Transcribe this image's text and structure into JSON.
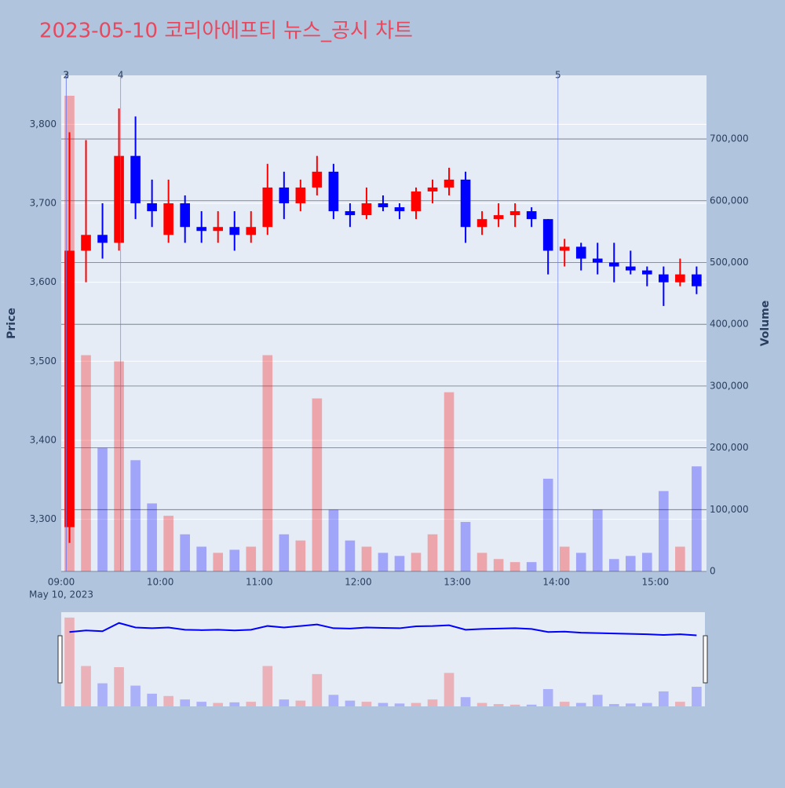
{
  "chart_data": {
    "type": "candlestick",
    "title": "2023-05-10 코리아에프티 뉴스_공시 차트",
    "x": [
      "09:00",
      "09:10",
      "09:20",
      "09:30",
      "09:40",
      "09:50",
      "10:00",
      "10:10",
      "10:20",
      "10:30",
      "10:40",
      "10:50",
      "11:00",
      "11:10",
      "11:20",
      "11:30",
      "11:40",
      "11:50",
      "12:00",
      "12:10",
      "12:20",
      "12:30",
      "12:40",
      "12:50",
      "13:00",
      "13:10",
      "13:20",
      "13:30",
      "13:40",
      "13:50",
      "14:00",
      "14:10",
      "14:20",
      "14:30",
      "14:40",
      "14:50",
      "15:00",
      "15:10",
      "15:20"
    ],
    "open": [
      3290,
      3640,
      3660,
      3650,
      3760,
      3700,
      3660,
      3700,
      3670,
      3665,
      3670,
      3660,
      3670,
      3720,
      3700,
      3720,
      3740,
      3690,
      3685,
      3700,
      3695,
      3690,
      3715,
      3720,
      3730,
      3670,
      3680,
      3685,
      3690,
      3680,
      3640,
      3645,
      3630,
      3625,
      3620,
      3615,
      3610,
      3600,
      3610
    ],
    "high": [
      3790,
      3780,
      3700,
      3820,
      3810,
      3730,
      3730,
      3710,
      3690,
      3690,
      3690,
      3690,
      3750,
      3740,
      3730,
      3760,
      3750,
      3700,
      3720,
      3710,
      3700,
      3720,
      3730,
      3745,
      3740,
      3690,
      3700,
      3700,
      3695,
      3680,
      3655,
      3650,
      3650,
      3650,
      3640,
      3620,
      3620,
      3630,
      3620
    ],
    "low": [
      3270,
      3600,
      3630,
      3640,
      3680,
      3670,
      3650,
      3650,
      3650,
      3650,
      3640,
      3650,
      3660,
      3680,
      3690,
      3710,
      3680,
      3670,
      3680,
      3690,
      3680,
      3680,
      3700,
      3710,
      3650,
      3660,
      3670,
      3670,
      3670,
      3610,
      3620,
      3615,
      3610,
      3600,
      3610,
      3595,
      3570,
      3595,
      3585
    ],
    "close": [
      3640,
      3660,
      3650,
      3760,
      3700,
      3690,
      3700,
      3670,
      3665,
      3670,
      3660,
      3670,
      3720,
      3700,
      3720,
      3740,
      3690,
      3685,
      3700,
      3695,
      3690,
      3715,
      3720,
      3730,
      3670,
      3680,
      3685,
      3690,
      3680,
      3640,
      3645,
      3630,
      3625,
      3620,
      3615,
      3610,
      3600,
      3610,
      3595
    ],
    "volume": [
      770000,
      350000,
      200000,
      340000,
      180000,
      110000,
      90000,
      60000,
      40000,
      30000,
      35000,
      40000,
      350000,
      60000,
      50000,
      280000,
      100000,
      50000,
      40000,
      30000,
      25000,
      30000,
      60000,
      290000,
      80000,
      30000,
      20000,
      15000,
      15000,
      150000,
      40000,
      30000,
      100000,
      20000,
      25000,
      30000,
      130000,
      40000,
      170000
    ],
    "up_color": "#ff0000",
    "down_color": "#0000ff",
    "xlim": [
      "09:00",
      "15:31"
    ],
    "xticks": [
      "09:00",
      "10:00",
      "11:00",
      "12:00",
      "13:00",
      "14:00",
      "15:00"
    ],
    "x_date_label": "May 10, 2023",
    "ylim": [
      3234,
      3862
    ],
    "yticks": [
      {
        "value": 3300,
        "label": "3,300"
      },
      {
        "value": 3400,
        "label": "3,400"
      },
      {
        "value": 3500,
        "label": "3,500"
      },
      {
        "value": 3600,
        "label": "3,600"
      },
      {
        "value": 3700,
        "label": "3,700"
      },
      {
        "value": 3800,
        "label": "3,800"
      }
    ],
    "y_label": "Price",
    "y2lim": [
      0,
      803000
    ],
    "y2ticks": [
      0,
      {
        "value": 100000,
        "label": "100,000"
      },
      {
        "value": 200000,
        "label": "200,000"
      },
      {
        "value": 300000,
        "label": "300,000"
      },
      {
        "value": 400000,
        "label": "400,000"
      },
      {
        "value": 500000,
        "label": "500,000"
      },
      {
        "value": 600000,
        "label": "600,000"
      },
      {
        "value": 700000,
        "label": "700,000"
      }
    ],
    "y2_label": "Volume",
    "annotations": [
      {
        "x": "09:03",
        "text": "2"
      },
      {
        "x": "09:03",
        "text": "3"
      },
      {
        "x": "09:36",
        "text": "4"
      },
      {
        "x": "14:01",
        "text": "5"
      }
    ],
    "grid": true,
    "rangeslider": true
  }
}
